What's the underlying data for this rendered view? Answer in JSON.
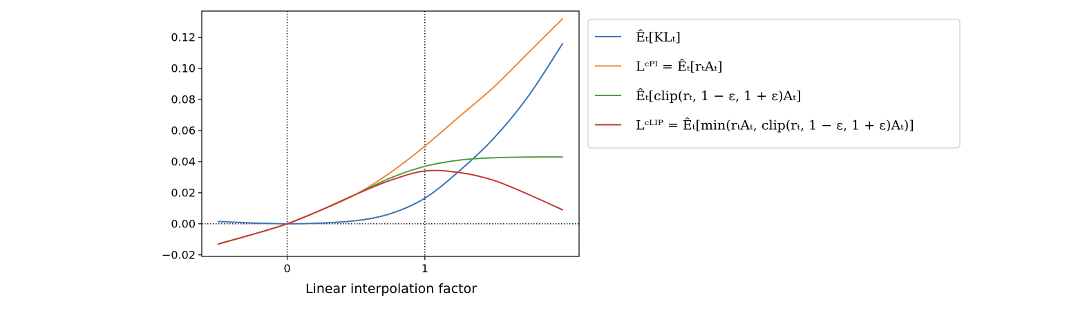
{
  "chart_data": {
    "type": "line",
    "title": "",
    "xlabel": "Linear interpolation factor",
    "ylabel": "",
    "xlim": [
      -0.62,
      2.12
    ],
    "ylim": [
      -0.021,
      0.137
    ],
    "grid": false,
    "legend_position": "outside-right-top",
    "xticks": [
      0,
      1
    ],
    "xtick_labels": [
      "0",
      "1"
    ],
    "yticks": [
      -0.02,
      0.0,
      0.02,
      0.04,
      0.06,
      0.08,
      0.1,
      0.12
    ],
    "ytick_labels": [
      "−0.02",
      "0.00",
      "0.02",
      "0.04",
      "0.06",
      "0.08",
      "0.10",
      "0.12"
    ],
    "reference_lines": [
      {
        "axis": "x",
        "value": 0,
        "style": "dotted",
        "color": "#000000"
      },
      {
        "axis": "x",
        "value": 1,
        "style": "dotted",
        "color": "#000000"
      },
      {
        "axis": "y",
        "value": 0,
        "style": "dotted",
        "color": "#000000"
      }
    ],
    "x": [
      -0.5,
      -0.25,
      0.0,
      0.25,
      0.5,
      0.75,
      1.0,
      1.25,
      1.5,
      1.75,
      2.0
    ],
    "series": [
      {
        "name": "E_t[KL_t]",
        "legend_label": "Êₜ[KLₜ]",
        "color": "#3b75af",
        "values": [
          0.0015,
          0.0005,
          0.0,
          0.0005,
          0.002,
          0.0065,
          0.0165,
          0.034,
          0.055,
          0.082,
          0.116
        ]
      },
      {
        "name": "L^CPI = E_t[r_t A_t]",
        "legend_label": "Lᶜᴾᴵ = Êₜ[rₜAₜ]",
        "color": "#ef8636",
        "values": [
          -0.013,
          -0.0068,
          0.0,
          0.009,
          0.019,
          0.033,
          0.05,
          0.069,
          0.088,
          0.11,
          0.132
        ]
      },
      {
        "name": "E_t[clip(r_t, 1-eps, 1+eps) A_t]",
        "legend_label": "Êₜ[clip(rₜ, 1 − ε, 1 + ε)Aₜ]",
        "color": "#519e3e",
        "values": [
          -0.013,
          -0.0068,
          0.0,
          0.009,
          0.019,
          0.0295,
          0.037,
          0.041,
          0.0425,
          0.043,
          0.043
        ]
      },
      {
        "name": "L^CLIP = E_t[min(r_t A_t, clip(r_t, 1-eps, 1+eps) A_t)]",
        "legend_label": "Lᶜᴸᴵᴾ = Êₜ[min(rₜAₜ, clip(rₜ, 1 − ε, 1 + ε)Aₜ)]",
        "color": "#c53a32",
        "values": [
          -0.013,
          -0.0068,
          0.0,
          0.009,
          0.019,
          0.028,
          0.034,
          0.033,
          0.028,
          0.019,
          0.009
        ]
      }
    ]
  }
}
